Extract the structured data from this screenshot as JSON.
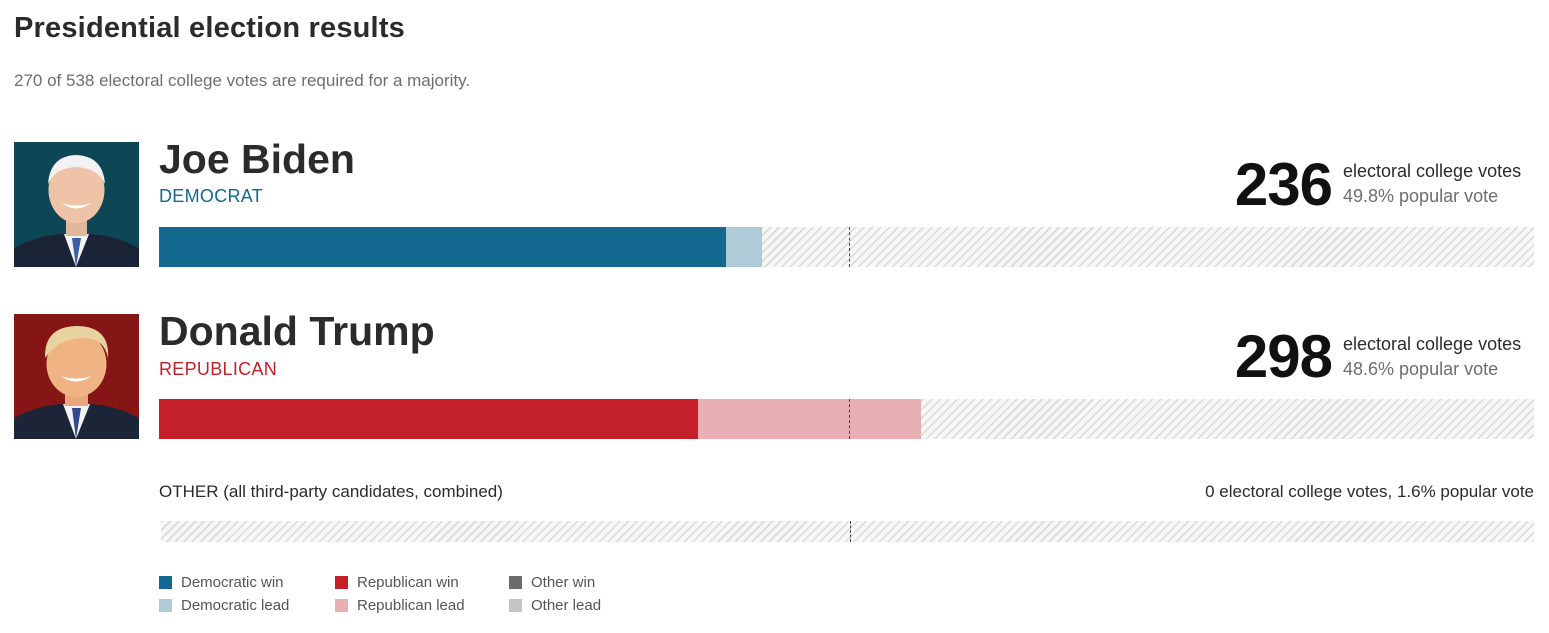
{
  "title": "Presidential election results",
  "subtitle": "270 of 538 electoral college votes are required for a majority.",
  "colors": {
    "dem_win": "#13698f",
    "dem_lead": "#aecbd8",
    "rep_win": "#c4202a",
    "rep_lead": "#e8b0b4",
    "other_win": "#6b6b6b",
    "other_lead": "#c5c5c5"
  },
  "candidates": [
    {
      "name": "Joe Biden",
      "party": "DEMOCRAT",
      "electoral_votes": "236",
      "ev_label": "electoral college votes",
      "popular_vote": "49.8% popular vote",
      "photo_icon": "biden-portrait"
    },
    {
      "name": "Donald Trump",
      "party": "REPUBLICAN",
      "electoral_votes": "298",
      "ev_label": "electoral college votes",
      "popular_vote": "48.6% popular vote",
      "photo_icon": "trump-portrait"
    }
  ],
  "other": {
    "label": "OTHER (all third-party candidates, combined)",
    "summary": "0 electoral college votes, 1.6% popular vote"
  },
  "legend": [
    {
      "label": "Democratic win",
      "color": "#13698f"
    },
    {
      "label": "Democratic lead",
      "color": "#aecbd8"
    },
    {
      "label": "Republican win",
      "color": "#c4202a"
    },
    {
      "label": "Republican lead",
      "color": "#e8b0b4"
    },
    {
      "label": "Other win",
      "color": "#6b6b6b"
    },
    {
      "label": "Other lead",
      "color": "#c5c5c5"
    }
  ],
  "chart_data": {
    "type": "bar",
    "orientation": "horizontal",
    "stacked": true,
    "title": "Presidential election results",
    "subtitle": "270 of 538 electoral college votes are required for a majority.",
    "total_electoral_votes": 538,
    "majority_threshold": 270,
    "xlim": [
      0,
      538
    ],
    "categories": [
      "Joe Biden",
      "Donald Trump",
      "OTHER (all third-party candidates, combined)"
    ],
    "series": [
      {
        "name": "Democratic win",
        "values": [
          222,
          0,
          0
        ]
      },
      {
        "name": "Democratic lead",
        "values": [
          14,
          0,
          0
        ]
      },
      {
        "name": "Republican win",
        "values": [
          0,
          211,
          0
        ]
      },
      {
        "name": "Republican lead",
        "values": [
          0,
          87,
          0
        ]
      },
      {
        "name": "Other win",
        "values": [
          0,
          0,
          0
        ]
      },
      {
        "name": "Other lead",
        "values": [
          0,
          0,
          0
        ]
      }
    ],
    "electoral_votes": [
      236,
      298,
      0
    ],
    "popular_vote_pct": [
      49.8,
      48.6,
      1.6
    ]
  }
}
